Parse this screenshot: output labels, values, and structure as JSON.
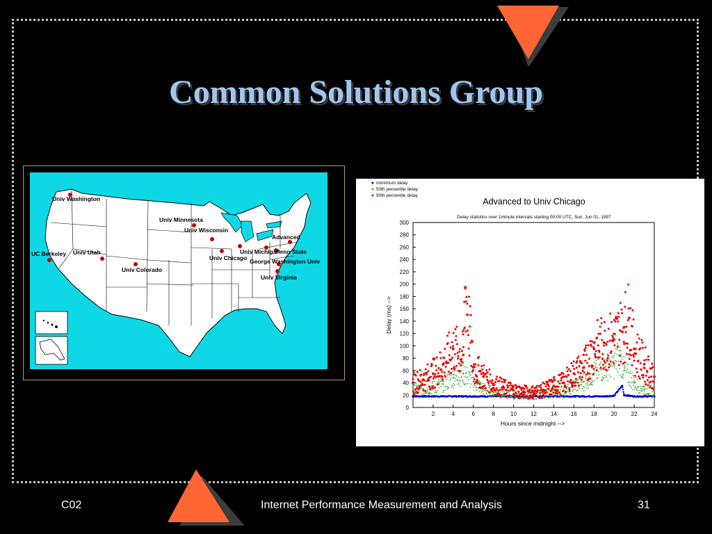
{
  "title": "Common Solutions Group",
  "footer": {
    "left": "C02",
    "center": "Internet Performance Measurement and Analysis",
    "right": "31"
  },
  "colors": {
    "accent": "#ff6633",
    "title": "#9ec6f0",
    "ocean": "#0fd8e6"
  },
  "map": {
    "sites": [
      {
        "label": "Univ Washington"
      },
      {
        "label": "UC Berkeley"
      },
      {
        "label": "Univ Utah"
      },
      {
        "label": "Univ Colorado"
      },
      {
        "label": "Univ Minnesota"
      },
      {
        "label": "Univ Wisconsin"
      },
      {
        "label": "Univ Chicago"
      },
      {
        "label": "Univ Michigan"
      },
      {
        "label": "Penn State"
      },
      {
        "label": "Advanced"
      },
      {
        "label": "George Washington Univ"
      },
      {
        "label": "Univ Virginia"
      }
    ]
  },
  "chart_data": {
    "type": "scatter",
    "title": "Advanced to Univ Chicago",
    "subtitle": "Delay  statistics over 1minute intervals starting 00:00 UTC, Sun, Jun 01, 1997",
    "xlabel": "Hours since midnight -->",
    "ylabel": "Delay (ms) -->",
    "xlim": [
      0,
      24
    ],
    "ylim": [
      0,
      300
    ],
    "xticks": [
      "2",
      "4",
      "6",
      "8",
      "10",
      "12",
      "14",
      "16",
      "18",
      "20",
      "22",
      "24"
    ],
    "yticks": [
      "0",
      "20",
      "40",
      "60",
      "80",
      "100",
      "120",
      "140",
      "160",
      "180",
      "200",
      "220",
      "240",
      "260",
      "280",
      "300"
    ],
    "legend_position": "top-left",
    "series": [
      {
        "name": "mimimum delay",
        "color": "#0000cc",
        "x": [
          0,
          1,
          2,
          3,
          4,
          5,
          6,
          7,
          8,
          9,
          10,
          11,
          12,
          13,
          14,
          15,
          16,
          17,
          18,
          19,
          20,
          20.8,
          21,
          22,
          23,
          24
        ],
        "values": [
          18,
          18,
          18,
          18,
          18,
          18,
          18,
          18,
          18,
          18,
          18,
          18,
          18,
          18,
          18,
          18,
          18,
          18,
          18,
          18,
          19,
          35,
          20,
          18,
          18,
          18
        ]
      },
      {
        "name": "50th percentile delay",
        "color": "#33aa33",
        "x": [
          0,
          1,
          2,
          3,
          4,
          5,
          6,
          7,
          8,
          9,
          10,
          11,
          12,
          13,
          14,
          15,
          16,
          17,
          18,
          19,
          20,
          20.5,
          21,
          22,
          23,
          24
        ],
        "values": [
          28,
          30,
          32,
          38,
          48,
          55,
          42,
          30,
          25,
          22,
          21,
          20,
          20,
          22,
          24,
          28,
          35,
          42,
          55,
          65,
          70,
          85,
          60,
          40,
          30,
          25
        ]
      },
      {
        "name": "90th percentile delay",
        "color": "#ee0000",
        "x": [
          0,
          1,
          2,
          3,
          4,
          5,
          5.2,
          6,
          7,
          8,
          9,
          10,
          11,
          12,
          13,
          14,
          15,
          16,
          17,
          18,
          19,
          20,
          21,
          21.5,
          22,
          23,
          24
        ],
        "values": [
          40,
          45,
          55,
          70,
          95,
          85,
          195,
          65,
          50,
          38,
          32,
          28,
          25,
          25,
          28,
          35,
          40,
          55,
          65,
          95,
          105,
          110,
          130,
          145,
          95,
          70,
          50
        ]
      }
    ]
  }
}
